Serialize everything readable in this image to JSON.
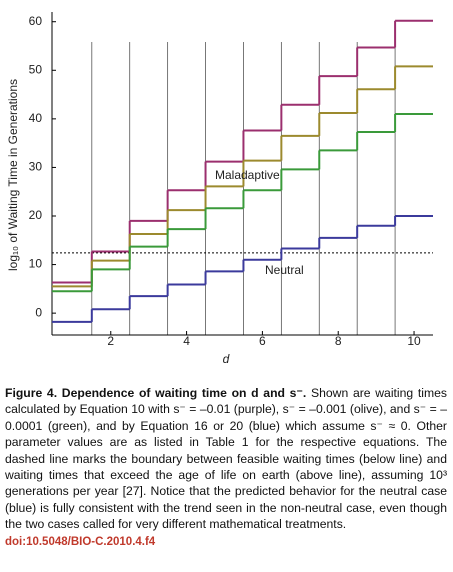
{
  "chart_data": {
    "type": "step",
    "x": [
      1,
      2,
      3,
      4,
      5,
      6,
      7,
      8,
      9,
      10
    ],
    "series": [
      {
        "color": "#9b2f6e",
        "values": [
          6.3,
          12.7,
          19,
          25.3,
          31.2,
          37.6,
          42.9,
          48.8,
          54.7,
          60.2
        ]
      },
      {
        "color": "#9c8a2e",
        "values": [
          5.5,
          10.8,
          16.3,
          21.2,
          26.1,
          31.4,
          36.5,
          41.2,
          46.1,
          50.8
        ]
      },
      {
        "color": "#3a9a3a",
        "values": [
          4.5,
          9,
          13.7,
          17.3,
          21.6,
          25.3,
          29.6,
          33.5,
          37.3,
          41
        ]
      },
      {
        "color": "#3b3a9c",
        "values": [
          -1.8,
          0.8,
          3.5,
          5.9,
          8.6,
          11,
          13.3,
          15.5,
          18,
          20
        ]
      }
    ],
    "threshold": 12.4,
    "annotations": [
      "Maladaptive",
      "Neutral"
    ],
    "xlabel": "d",
    "ylabel": "log₁₀ of Waiting Time in Generations",
    "xlim": [
      0.45,
      10.5
    ],
    "xticks": [
      2,
      4,
      6,
      8,
      10
    ],
    "ylim": [
      -4.5,
      62
    ],
    "yticks": [
      0,
      10,
      20,
      30,
      40,
      50,
      60
    ]
  },
  "caption": {
    "label": "Figure 4. Dependence of waiting time on d and s⁻.",
    "text": "Shown are waiting times calculated by Equation 10 with s⁻ = –0.01 (purple), s⁻ = –0.001 (olive), and s⁻ = –0.0001 (green), and by Equation 16 or 20 (blue) which assume s⁻ ≈ 0. Other parameter values are as listed in Table 1 for the respective equations. The dashed line marks the boundary between feasible waiting times (below line) and waiting times that exceed the age of life on earth (above line), assuming 10³ generations per year [27]. Notice that the predicted behavior for the neutral case (blue) is fully consistent with the trend seen in the non-neutral case, even though the two cases called for very different mathematical treatments.",
    "doi": "doi:10.5048/BIO-C.2010.4.f4"
  }
}
